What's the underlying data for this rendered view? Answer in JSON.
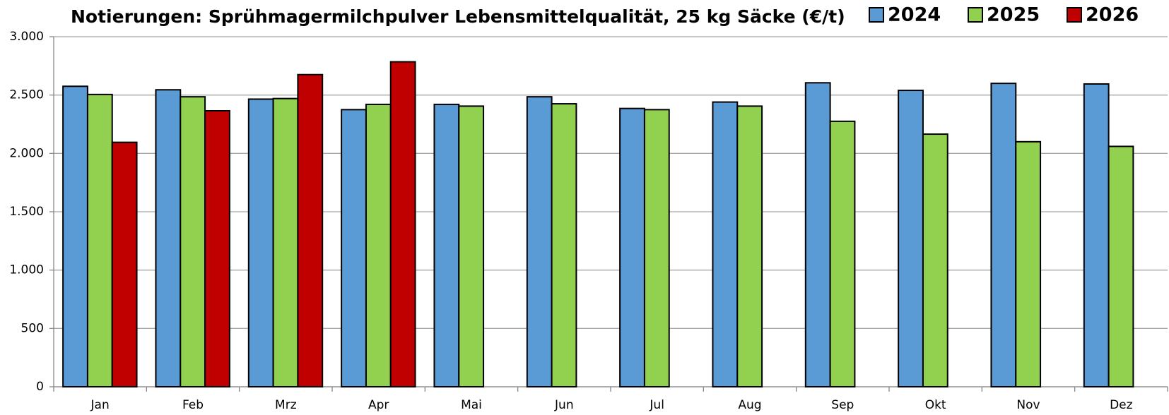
{
  "chart_data": {
    "type": "bar",
    "title": "Notierungen: Sprühmagermilchpulver Lebensmittelqualität, 25 kg Säcke (€/t)",
    "categories": [
      "Jan",
      "Feb",
      "Mrz",
      "Apr",
      "Mai",
      "Jun",
      "Jul",
      "Aug",
      "Sep",
      "Okt",
      "Nov",
      "Dez"
    ],
    "series": [
      {
        "name": "2024",
        "color": "#5b9bd5",
        "values": [
          2575,
          2545,
          2465,
          2375,
          2420,
          2485,
          2385,
          2440,
          2605,
          2540,
          2600,
          2595
        ]
      },
      {
        "name": "2025",
        "color": "#92d050",
        "values": [
          2505,
          2485,
          2470,
          2420,
          2405,
          2425,
          2375,
          2405,
          2275,
          2165,
          2100,
          2060
        ]
      },
      {
        "name": "2026",
        "color": "#c00000",
        "values": [
          2095,
          2365,
          2675,
          2785,
          null,
          null,
          null,
          null,
          null,
          null,
          null,
          null
        ]
      }
    ],
    "ylim": [
      0,
      3000
    ],
    "yticks": [
      0,
      500,
      {
        "value": 1000,
        "label": "1.000"
      },
      {
        "value": 1500,
        "label": "1.500"
      },
      {
        "value": 2000,
        "label": "2.000"
      },
      {
        "value": 2500,
        "label": "2.500"
      },
      {
        "value": 3000,
        "label": "3.000"
      }
    ],
    "grid": true,
    "legend": "top-right"
  }
}
